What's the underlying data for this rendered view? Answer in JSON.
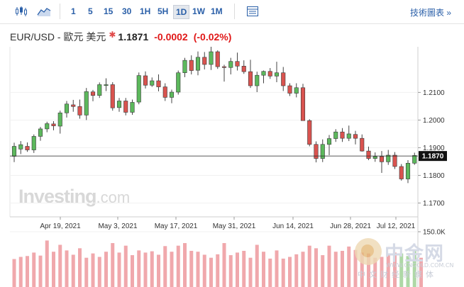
{
  "toolbar": {
    "icons": [
      "candlestick-chart-icon",
      "area-chart-icon",
      "table-icon"
    ],
    "intervals": [
      "1",
      "5",
      "15",
      "30",
      "1H",
      "5H",
      "1D",
      "1W",
      "1M"
    ],
    "active_interval": "1D",
    "tech_link": "技術圖表 »"
  },
  "header": {
    "symbol": "EUR/USD - 歐元 美元",
    "price": "1.1871",
    "change": "-0.0002",
    "change_pct": "(-0.02%)"
  },
  "logo": {
    "main": "Investing",
    "suffix": ".com"
  },
  "watermark": {
    "main": "中金网",
    "url": "WWW.CNGOLD.COM.CN",
    "tagline": "中文财经新媒体"
  },
  "colors": {
    "up": "#5cb85c",
    "down": "#d9534f",
    "volume": "#f0a8ac",
    "volume_up": "#aed8a6"
  },
  "chart_data": {
    "type": "candlestick",
    "title": "",
    "x_tick_labels": [
      "Apr 19, 2021",
      "May 3, 2021",
      "May 17, 2021",
      "May 31, 2021",
      "Jun 14, 2021",
      "Jun 28, 2021",
      "Jul 12, 2021"
    ],
    "y_tick_labels": [
      "1.2100",
      "1.2000",
      "1.1900",
      "1.1800",
      "1.1700"
    ],
    "ylim": [
      1.165,
      1.2265
    ],
    "current_price_label": "1.1870",
    "volume_axis_label": "150.0K",
    "volume_max": 150000,
    "candles": [
      [
        1.1869,
        1.1918,
        1.1848,
        1.1905
      ],
      [
        1.1895,
        1.1924,
        1.1877,
        1.1911
      ],
      [
        1.1905,
        1.1919,
        1.1885,
        1.1892
      ],
      [
        1.1892,
        1.1948,
        1.1881,
        1.1941
      ],
      [
        1.1941,
        1.1975,
        1.1925,
        1.1968
      ],
      [
        1.1968,
        1.1994,
        1.1956,
        1.1987
      ],
      [
        1.1986,
        1.1996,
        1.1963,
        1.1979
      ],
      [
        1.1978,
        1.2034,
        1.1951,
        1.2026
      ],
      [
        1.2026,
        1.2069,
        1.2009,
        1.2058
      ],
      [
        1.2055,
        1.2073,
        1.203,
        1.2049
      ],
      [
        1.2049,
        1.2074,
        1.2005,
        1.2018
      ],
      [
        1.2018,
        1.2116,
        1.2,
        1.2103
      ],
      [
        1.2102,
        1.2109,
        1.2068,
        1.2089
      ],
      [
        1.2089,
        1.2136,
        1.208,
        1.2128
      ],
      [
        1.2128,
        1.2151,
        1.2105,
        1.2128
      ],
      [
        1.2128,
        1.2137,
        1.2034,
        1.2044
      ],
      [
        1.2045,
        1.208,
        1.203,
        1.2069
      ],
      [
        1.2069,
        1.208,
        1.2017,
        1.2028
      ],
      [
        1.2028,
        1.2074,
        1.2019,
        1.2064
      ],
      [
        1.2065,
        1.2172,
        1.2057,
        1.2161
      ],
      [
        1.216,
        1.2176,
        1.2114,
        1.2126
      ],
      [
        1.2126,
        1.2154,
        1.212,
        1.2142
      ],
      [
        1.2142,
        1.2165,
        1.2104,
        1.212
      ],
      [
        1.212,
        1.2133,
        1.2069,
        1.2082
      ],
      [
        1.2082,
        1.211,
        1.2061,
        1.2101
      ],
      [
        1.2101,
        1.2179,
        1.2092,
        1.2171
      ],
      [
        1.2171,
        1.2225,
        1.2155,
        1.2216
      ],
      [
        1.2216,
        1.2234,
        1.2165,
        1.2179
      ],
      [
        1.218,
        1.2248,
        1.2162,
        1.2227
      ],
      [
        1.2227,
        1.2246,
        1.2183,
        1.2201
      ],
      [
        1.2201,
        1.2265,
        1.2181,
        1.2247
      ],
      [
        1.2247,
        1.2252,
        1.2185,
        1.2193
      ],
      [
        1.2193,
        1.22,
        1.2139,
        1.219
      ],
      [
        1.219,
        1.2225,
        1.2165,
        1.2212
      ],
      [
        1.2212,
        1.2244,
        1.2179,
        1.2195
      ],
      [
        1.2195,
        1.2216,
        1.2167,
        1.2175
      ],
      [
        1.2175,
        1.2218,
        1.2116,
        1.2124
      ],
      [
        1.2124,
        1.2175,
        1.2101,
        1.2162
      ],
      [
        1.2162,
        1.2179,
        1.2133,
        1.2176
      ],
      [
        1.2176,
        1.2188,
        1.2149,
        1.2159
      ],
      [
        1.2159,
        1.2211,
        1.2137,
        1.2171
      ],
      [
        1.2171,
        1.2192,
        1.2105,
        1.2124
      ],
      [
        1.2124,
        1.2133,
        1.2087,
        1.2097
      ],
      [
        1.2097,
        1.2133,
        1.2082,
        1.2117
      ],
      [
        1.2117,
        1.2131,
        1.1998,
        1.1998
      ],
      [
        1.1998,
        1.2003,
        1.1905,
        1.1912
      ],
      [
        1.1912,
        1.1923,
        1.1847,
        1.1861
      ],
      [
        1.1861,
        1.193,
        1.1848,
        1.1912
      ],
      [
        1.1912,
        1.1946,
        1.1873,
        1.1933
      ],
      [
        1.1933,
        1.1967,
        1.1921,
        1.1957
      ],
      [
        1.1957,
        1.1971,
        1.1921,
        1.1934
      ],
      [
        1.1934,
        1.198,
        1.1924,
        1.195
      ],
      [
        1.1948,
        1.1961,
        1.1912,
        1.1934
      ],
      [
        1.1934,
        1.1948,
        1.1886,
        1.1888
      ],
      [
        1.1888,
        1.1904,
        1.1855,
        1.1861
      ],
      [
        1.1861,
        1.1883,
        1.1849,
        1.1868
      ],
      [
        1.1868,
        1.1888,
        1.1809,
        1.1849
      ],
      [
        1.1849,
        1.1892,
        1.1838,
        1.1873
      ],
      [
        1.1873,
        1.1884,
        1.1823,
        1.1832
      ],
      [
        1.1832,
        1.1841,
        1.1781,
        1.1787
      ],
      [
        1.1787,
        1.1855,
        1.1772,
        1.1844
      ],
      [
        1.1844,
        1.1882,
        1.1838,
        1.1872
      ],
      [
        1.1872,
        1.1882,
        1.1859,
        1.187
      ]
    ],
    "volumes": [
      55,
      60,
      62,
      70,
      63,
      98,
      72,
      88,
      75,
      65,
      80,
      58,
      68,
      60,
      72,
      92,
      70,
      86,
      64,
      75,
      70,
      73,
      65,
      85,
      72,
      86,
      92,
      74,
      72,
      65,
      58,
      66,
      92,
      64,
      70,
      74,
      58,
      88,
      72,
      56,
      75,
      56,
      60,
      66,
      72,
      86,
      80,
      64,
      86,
      72,
      74,
      84,
      76,
      70,
      68,
      58,
      60,
      64,
      70,
      68,
      62,
      74,
      58
    ],
    "volume_up_index": [
      59,
      60,
      61
    ]
  }
}
